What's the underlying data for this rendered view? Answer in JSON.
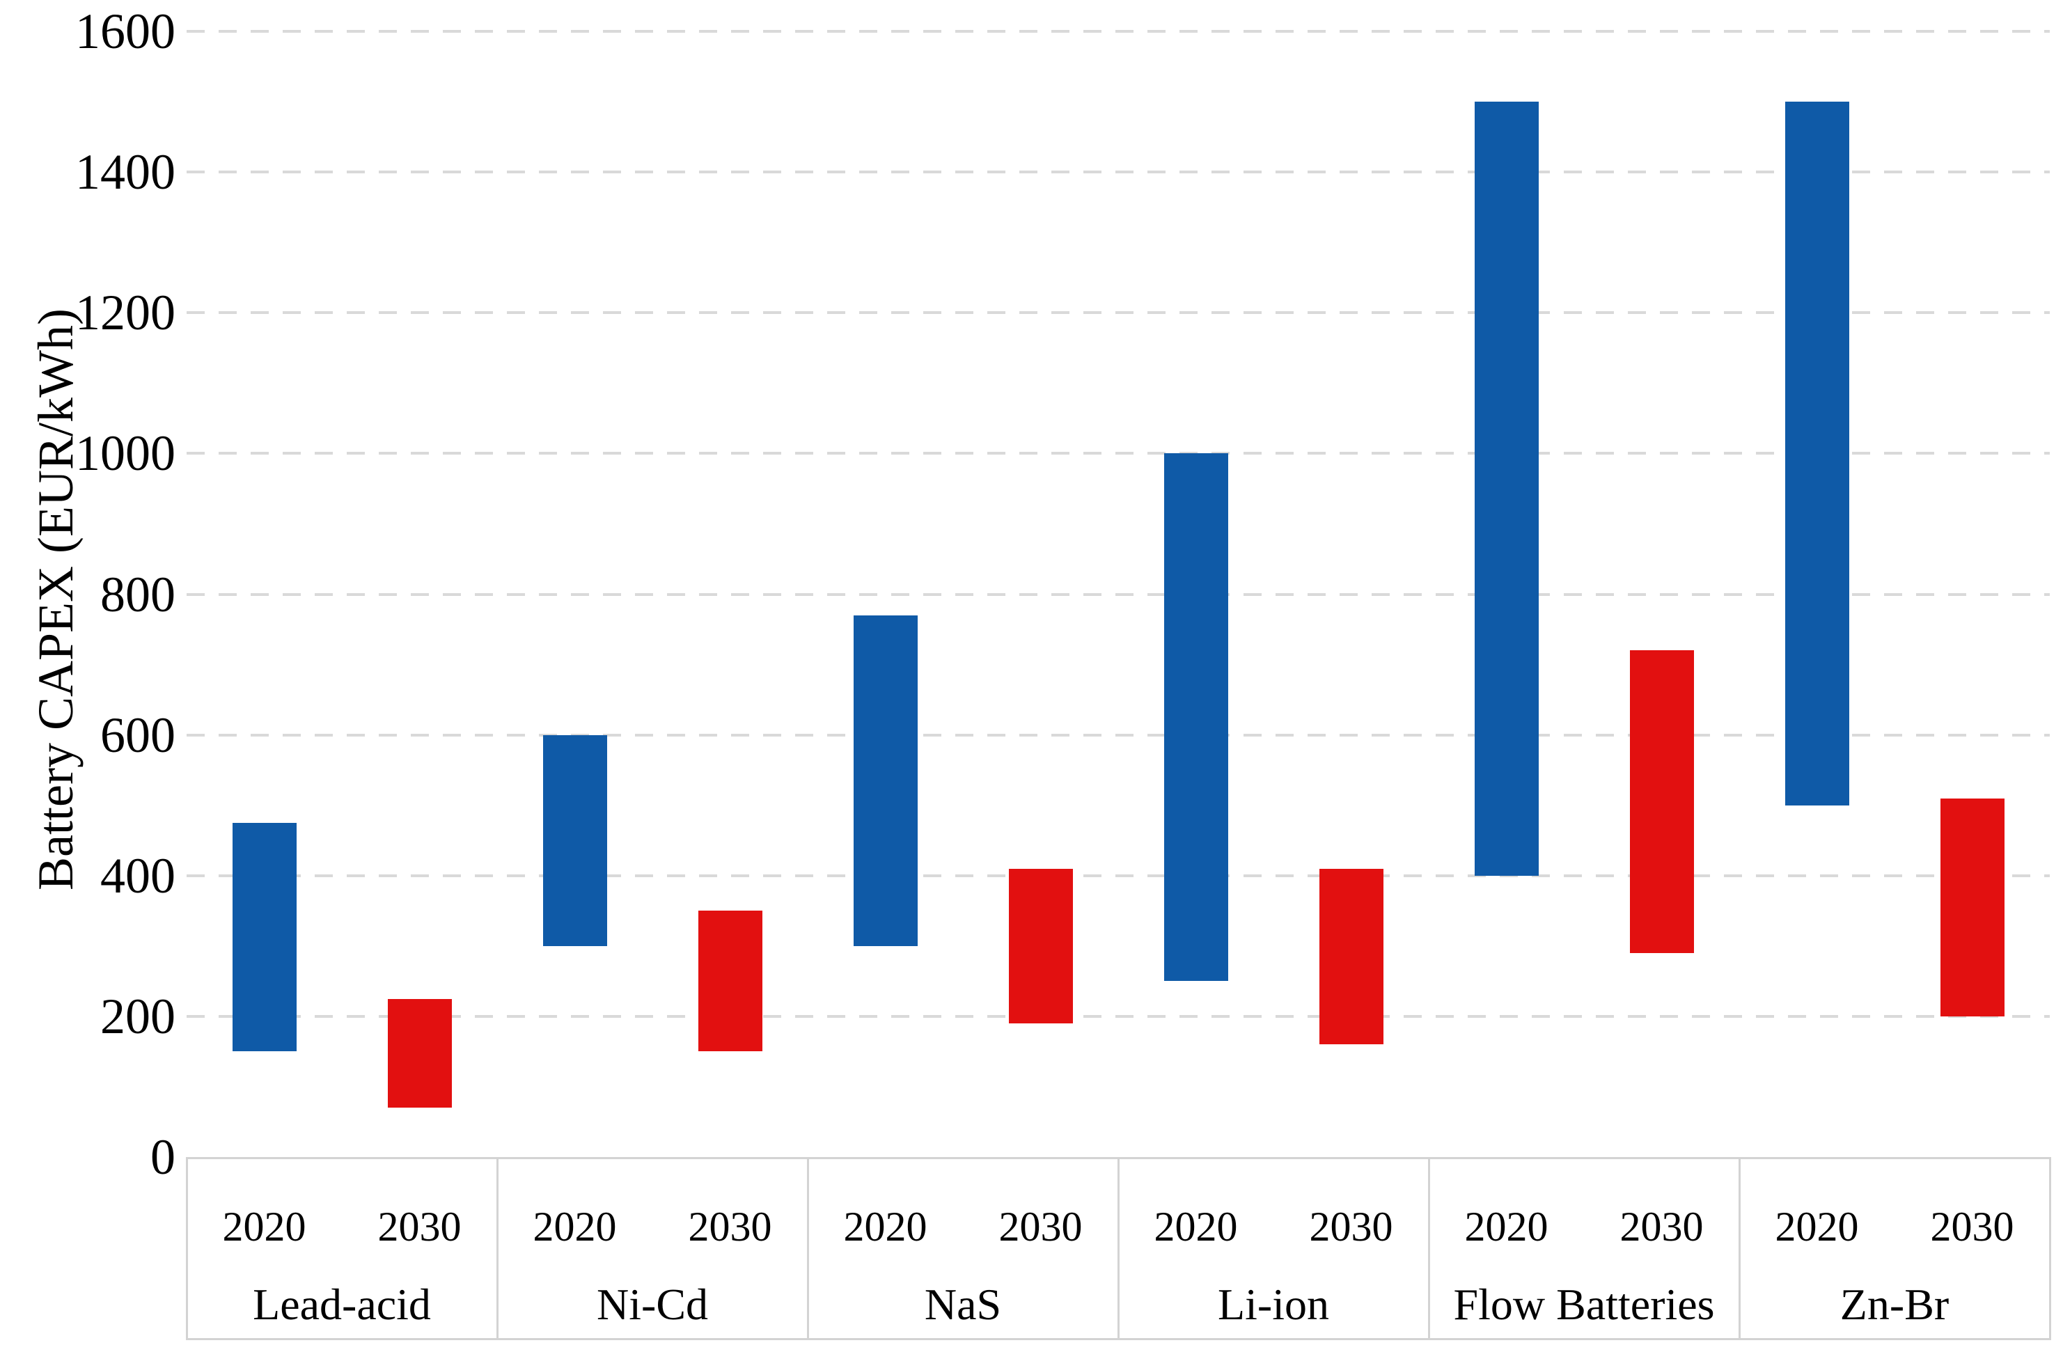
{
  "chart_data": {
    "type": "bar",
    "subtype": "floating-range-column",
    "title": "",
    "ylabel": "Battery CAPEX (EUR/kWh)",
    "xlabel": "",
    "ylim": [
      0,
      1600
    ],
    "y_tick_step": 200,
    "y_tick_labels": [
      "0",
      "200",
      "400",
      "600",
      "800",
      "1000",
      "1200",
      "1400",
      "1600"
    ],
    "grid": "horizontal-dashed",
    "legend_position": "none",
    "categories": [
      "Lead-acid",
      "Ni-Cd",
      "NaS",
      "Li-ion",
      "Flow Batteries",
      "Zn-Br"
    ],
    "sub_categories": [
      "2020",
      "2030"
    ],
    "series": [
      {
        "name": "2020",
        "color": "#0F5AA7",
        "ranges": [
          {
            "category": "Lead-acid",
            "low": 150,
            "high": 475
          },
          {
            "category": "Ni-Cd",
            "low": 300,
            "high": 600
          },
          {
            "category": "NaS",
            "low": 300,
            "high": 770
          },
          {
            "category": "Li-ion",
            "low": 250,
            "high": 1000
          },
          {
            "category": "Flow Batteries",
            "low": 400,
            "high": 1500
          },
          {
            "category": "Zn-Br",
            "low": 500,
            "high": 1500
          }
        ]
      },
      {
        "name": "2030",
        "color": "#E21010",
        "ranges": [
          {
            "category": "Lead-acid",
            "low": 70,
            "high": 225
          },
          {
            "category": "Ni-Cd",
            "low": 150,
            "high": 350
          },
          {
            "category": "NaS",
            "low": 190,
            "high": 410
          },
          {
            "category": "Li-ion",
            "low": 160,
            "high": 410
          },
          {
            "category": "Flow Batteries",
            "low": 290,
            "high": 720
          },
          {
            "category": "Zn-Br",
            "low": 200,
            "high": 510
          }
        ]
      }
    ],
    "colors": {
      "bar_2020": "#0F5AA7",
      "bar_2030": "#E21010",
      "gridline": "#D9D9D9",
      "axis_table_border": "#D3D3D3",
      "text": "#000000",
      "background": "#FFFFFF"
    }
  }
}
